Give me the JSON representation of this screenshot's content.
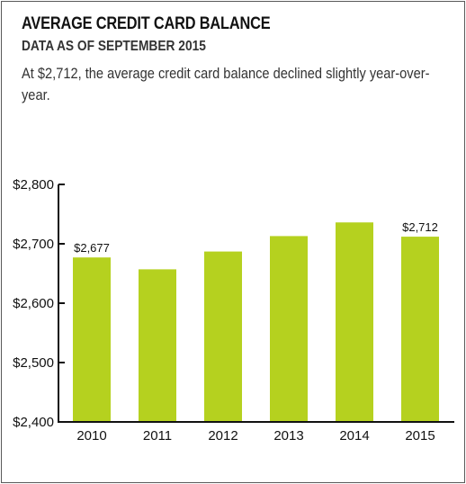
{
  "header": {
    "title": "AVERAGE CREDIT CARD BALANCE",
    "subtitle": "DATA AS OF SEPTEMBER 2015",
    "description": "At $2,712, the average credit card balance declined slightly year-over-year."
  },
  "colors": {
    "bar": "#b5d11f",
    "axis": "#111111",
    "border": "#5a5a5a"
  },
  "chart_data": {
    "type": "bar",
    "title": "AVERAGE CREDIT CARD BALANCE",
    "subtitle": "DATA AS OF SEPTEMBER 2015",
    "xlabel": "",
    "ylabel": "",
    "categories": [
      "2010",
      "2011",
      "2012",
      "2013",
      "2014",
      "2015"
    ],
    "values": [
      2677,
      2657,
      2687,
      2713,
      2736,
      2712
    ],
    "data_labels": [
      {
        "category": "2010",
        "text": "$2,677"
      },
      {
        "category": "2015",
        "text": "$2,712"
      }
    ],
    "ylim": [
      2400,
      2800
    ],
    "yticks": [
      2400,
      2500,
      2600,
      2700,
      2800
    ],
    "ytick_labels": [
      "$2,400",
      "$2,500",
      "$2,600",
      "$2,700",
      "$2,800"
    ],
    "grid": false,
    "legend": "none"
  }
}
